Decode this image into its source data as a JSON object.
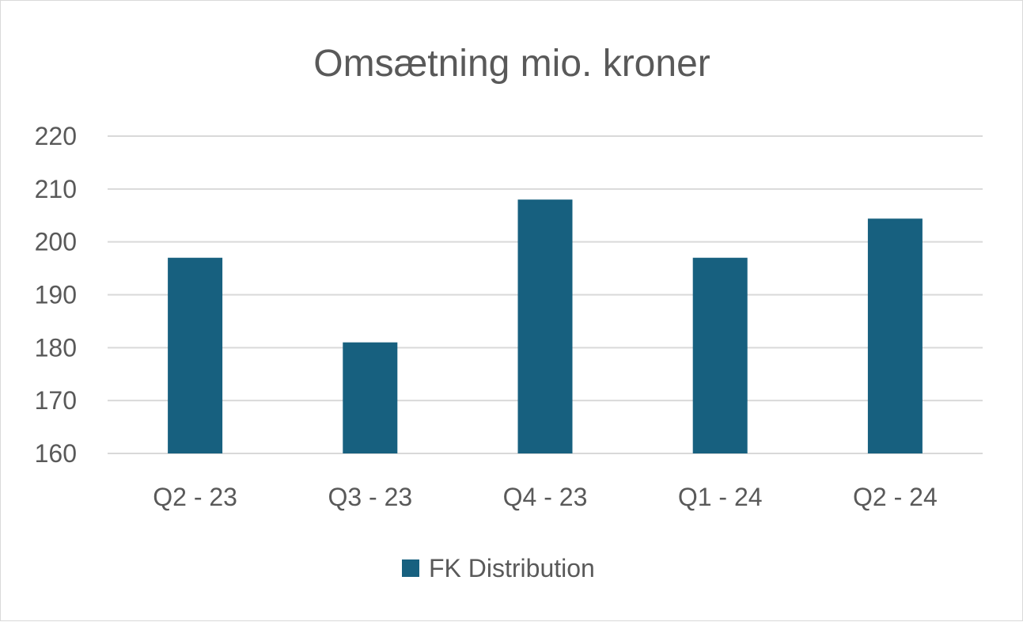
{
  "chart_data": {
    "type": "bar",
    "title": "Omsætning mio. kroner",
    "xlabel": "",
    "ylabel": "",
    "categories": [
      "Q2 - 23",
      "Q3 - 23",
      "Q4 - 23",
      "Q1 - 24",
      "Q2 - 24"
    ],
    "series": [
      {
        "name": "FK Distribution",
        "values": [
          197,
          181,
          208,
          197,
          204.4
        ],
        "color": "#17607F"
      }
    ],
    "ylim": [
      160,
      220
    ],
    "yticks": [
      160,
      170,
      180,
      190,
      200,
      210,
      220
    ],
    "grid": true,
    "legend_position": "bottom"
  }
}
